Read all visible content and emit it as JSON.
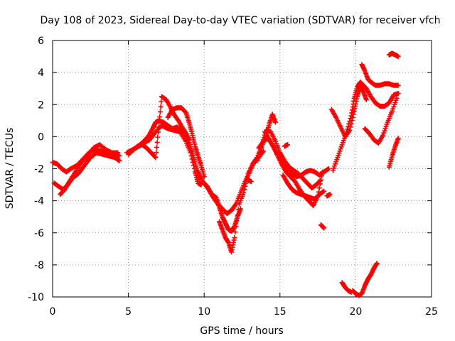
{
  "chart_data": {
    "type": "scatter",
    "title": "Day 108 of 2023, Sidereal Day-to-day VTEC variation (SDTVAR) for receiver vfch",
    "xlabel": "GPS time / hours",
    "ylabel": "SDTVAR / TECUs",
    "xlim": [
      0,
      25
    ],
    "ylim": [
      -10,
      6
    ],
    "xticks": [
      "0",
      "5",
      "10",
      "15",
      "20",
      "25"
    ],
    "yticks": [
      "6",
      "4",
      "2",
      "0",
      "-2",
      "-4",
      "-6",
      "-8",
      "-10"
    ],
    "grid": true,
    "marker": "+",
    "color": "#ff0000",
    "series": [
      {
        "x": [
          0.0,
          0.3,
          0.6,
          0.9,
          1.2,
          1.6,
          2.0,
          2.4,
          2.8,
          3.2,
          3.6,
          4.0,
          4.4
        ],
        "y": [
          -1.6,
          -1.7,
          -2.0,
          -2.2,
          -2.0,
          -1.8,
          -1.4,
          -1.0,
          -0.8,
          -0.9,
          -1.1,
          -1.0,
          -1.2
        ]
      },
      {
        "x": [
          0.1,
          0.4,
          0.7,
          1.0,
          1.3,
          1.7,
          2.1,
          2.5,
          2.9,
          3.3,
          3.7,
          4.1,
          4.4
        ],
        "y": [
          -2.9,
          -3.1,
          -3.3,
          -3.0,
          -2.6,
          -2.3,
          -1.8,
          -1.3,
          -1.0,
          -1.1,
          -1.2,
          -1.3,
          -1.5
        ]
      },
      {
        "x": [
          0.5,
          0.8,
          1.1,
          1.5,
          1.9,
          2.3,
          2.7,
          3.1,
          3.5,
          3.9,
          4.3
        ],
        "y": [
          -3.6,
          -3.3,
          -2.8,
          -2.2,
          -1.6,
          -1.2,
          -0.7,
          -0.5,
          -0.8,
          -1.0,
          -1.0
        ]
      },
      {
        "x": [
          4.9,
          5.3,
          5.7,
          6.0,
          6.4,
          6.8,
          7.2,
          7.6,
          8.0,
          8.4,
          8.8,
          9.1,
          9.4,
          9.6,
          9.8
        ],
        "y": [
          -1.0,
          -0.8,
          -0.6,
          -0.4,
          -0.2,
          0.3,
          0.7,
          0.5,
          0.4,
          0.3,
          -0.3,
          -1.0,
          -2.2,
          -2.9,
          -3.0
        ]
      },
      {
        "x": [
          5.0,
          5.5,
          6.0,
          6.3,
          6.6,
          6.8,
          7.0,
          7.3,
          7.6,
          7.9,
          8.2,
          8.5,
          8.8,
          9.1,
          9.3,
          9.5,
          9.7
        ],
        "y": [
          -1.1,
          -0.7,
          -0.3,
          0.0,
          0.5,
          0.9,
          1.0,
          0.9,
          0.7,
          0.5,
          0.6,
          0.4,
          0.1,
          -0.6,
          -1.3,
          -2.0,
          -2.6
        ]
      },
      {
        "x": [
          5.2,
          5.6,
          5.9,
          6.2,
          6.5,
          6.8,
          7.0,
          7.2,
          7.5,
          7.8,
          8.0,
          8.3,
          8.6,
          8.8,
          9.0
        ],
        "y": [
          -0.9,
          -0.6,
          -0.5,
          -0.7,
          -1.0,
          -1.3,
          0.6,
          2.5,
          2.3,
          1.8,
          1.4,
          1.0,
          0.5,
          0.2,
          -0.2
        ]
      },
      {
        "x": [
          7.6,
          7.9,
          8.2,
          8.5,
          8.8,
          9.0,
          9.2,
          9.4,
          9.6,
          9.8,
          10.0
        ],
        "y": [
          1.2,
          1.7,
          1.8,
          1.8,
          1.5,
          0.9,
          0.2,
          -0.6,
          -1.2,
          -1.8,
          -2.5
        ]
      },
      {
        "x": [
          9.6,
          9.9,
          10.2,
          10.5,
          10.8,
          11.0,
          11.2,
          11.4,
          11.6,
          11.8,
          12.0,
          12.2,
          12.4
        ],
        "y": [
          -2.2,
          -2.8,
          -3.1,
          -3.6,
          -3.8,
          -4.4,
          -5.0,
          -5.4,
          -5.8,
          -5.9,
          -5.6,
          -5.0,
          -4.5
        ]
      },
      {
        "x": [
          10.0,
          10.3,
          10.6,
          10.9,
          11.2,
          11.5,
          11.8,
          12.1,
          12.4,
          12.7,
          13.0,
          13.3,
          13.6,
          13.9
        ],
        "y": [
          -2.9,
          -3.3,
          -3.8,
          -4.2,
          -4.5,
          -4.8,
          -4.6,
          -4.2,
          -3.5,
          -2.8,
          -2.2,
          -1.6,
          -1.3,
          -0.9
        ]
      },
      {
        "x": [
          11.0,
          11.2,
          11.4,
          11.6,
          11.8,
          12.0,
          12.3,
          12.6,
          12.9,
          13.2,
          13.5,
          13.8,
          14.1,
          14.3,
          14.5,
          14.7
        ],
        "y": [
          -5.3,
          -5.8,
          -6.3,
          -6.6,
          -7.2,
          -6.3,
          -4.2,
          -3.5,
          -2.3,
          -1.7,
          -1.3,
          -0.6,
          0.1,
          0.8,
          1.4,
          0.9
        ]
      },
      {
        "x": [
          13.5,
          13.8,
          14.1,
          14.4,
          14.7,
          15.0,
          15.3,
          15.6,
          15.9,
          16.2,
          16.5,
          16.8,
          17.1,
          17.4,
          17.7
        ],
        "y": [
          -1.5,
          -0.5,
          0.4,
          0.3,
          -0.3,
          -1.0,
          -1.5,
          -1.9,
          -2.1,
          -2.3,
          -2.6,
          -2.9,
          -3.2,
          -3.0,
          -2.7
        ]
      },
      {
        "x": [
          13.6,
          13.9,
          14.2,
          14.5,
          14.8,
          15.1,
          15.4,
          15.7,
          16.0,
          16.3,
          16.6,
          16.9,
          17.2,
          17.5,
          17.8
        ],
        "y": [
          -0.7,
          -0.3,
          -0.1,
          -0.5,
          -1.1,
          -1.7,
          -2.2,
          -2.5,
          -2.8,
          -3.3,
          -3.7,
          -4.0,
          -4.3,
          -3.7,
          -2.2
        ]
      },
      {
        "x": [
          14.0,
          14.3,
          14.6,
          14.9,
          15.2,
          15.5,
          15.8,
          16.1,
          16.4,
          16.7,
          17.0,
          17.3,
          17.6,
          17.9,
          18.2
        ],
        "y": [
          0.3,
          -0.2,
          -0.7,
          -1.2,
          -1.7,
          -2.1,
          -2.3,
          -2.5,
          -2.4,
          -2.2,
          -2.1,
          -2.2,
          -2.4,
          -2.2,
          -2.0
        ]
      },
      {
        "x": [
          15.2,
          15.5,
          15.8,
          16.1,
          16.4,
          16.7,
          17.0,
          17.3,
          17.6,
          17.9
        ],
        "y": [
          -2.4,
          -2.9,
          -3.3,
          -3.5,
          -3.6,
          -3.7,
          -3.8,
          -3.9,
          -3.6,
          -3.4
        ]
      },
      {
        "x": [
          18.4,
          18.7,
          19.0,
          19.3,
          19.6,
          19.9,
          20.1,
          20.3,
          20.5,
          20.7
        ],
        "y": [
          1.7,
          1.2,
          0.6,
          0.0,
          0.4,
          1.6,
          2.5,
          3.1,
          2.8,
          2.3
        ]
      },
      {
        "x": [
          18.5,
          18.8,
          19.1,
          19.4,
          19.7,
          19.9,
          20.1,
          20.3,
          20.5,
          20.7,
          21.0,
          21.3,
          21.6,
          21.9,
          22.2,
          22.5,
          22.8
        ],
        "y": [
          -2.1,
          -1.3,
          -0.5,
          0.3,
          1.3,
          2.4,
          3.1,
          3.4,
          3.2,
          3.0,
          2.5,
          2.1,
          1.9,
          1.9,
          2.1,
          2.6,
          2.7
        ]
      },
      {
        "x": [
          20.4,
          20.6,
          20.8,
          21.0,
          21.3,
          21.6,
          21.9,
          22.2,
          22.5,
          22.8
        ],
        "y": [
          4.5,
          4.1,
          3.6,
          3.4,
          3.2,
          3.2,
          3.3,
          3.3,
          3.2,
          3.2
        ]
      },
      {
        "x": [
          20.6,
          20.9,
          21.2,
          21.5,
          21.8,
          22.1,
          22.4,
          22.7
        ],
        "y": [
          0.5,
          0.2,
          -0.2,
          -0.4,
          0.1,
          0.9,
          1.6,
          2.4
        ]
      },
      {
        "x": [
          22.2,
          22.4,
          22.6,
          22.8
        ],
        "y": [
          5.1,
          5.2,
          5.1,
          5.0
        ]
      },
      {
        "x": [
          22.2,
          22.4,
          22.6,
          22.8
        ],
        "y": [
          -1.9,
          -1.2,
          -0.6,
          -0.1
        ]
      },
      {
        "x": [
          19.8,
          20.0,
          20.2,
          20.4,
          20.6,
          20.8,
          21.0,
          21.2,
          21.4
        ],
        "y": [
          -9.6,
          -9.8,
          -9.9,
          -9.8,
          -9.3,
          -8.9,
          -8.6,
          -8.2,
          -7.9
        ]
      },
      {
        "x": [
          19.1,
          19.3,
          19.5,
          19.7
        ],
        "y": [
          -9.1,
          -9.4,
          -9.6,
          -9.7
        ]
      },
      {
        "x": [
          17.7,
          17.9
        ],
        "y": [
          -5.5,
          -5.7
        ]
      },
      {
        "x": [
          18.1,
          18.3
        ],
        "y": [
          -3.7,
          -3.6
        ]
      },
      {
        "x": [
          12.9,
          13.1
        ],
        "y": [
          -2.7,
          -2.8
        ]
      },
      {
        "x": [
          15.3,
          15.5
        ],
        "y": [
          -0.6,
          -0.5
        ]
      }
    ]
  }
}
